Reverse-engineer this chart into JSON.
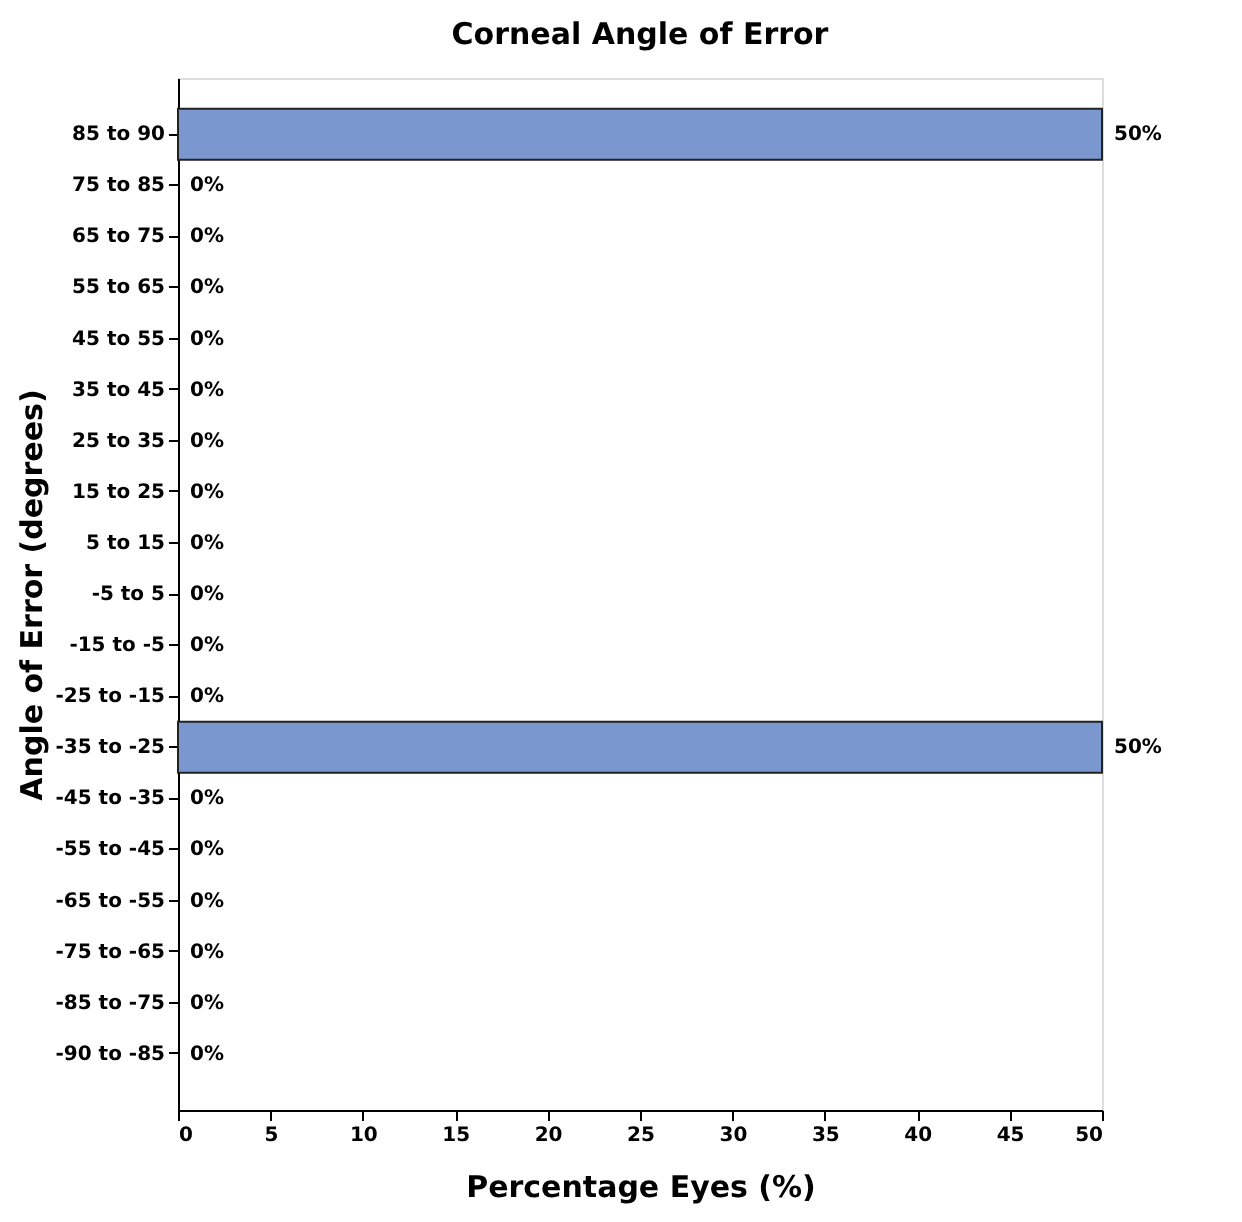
{
  "chart_data": {
    "type": "bar",
    "orientation": "horizontal",
    "title": "Corneal Angle of Error",
    "xlabel": "Percentage Eyes (%)",
    "ylabel": "Angle of Error (degrees)",
    "categories": [
      "85 to 90",
      "75 to 85",
      "65 to 75",
      "55 to 65",
      "45 to 55",
      "35 to 45",
      "25 to 35",
      "15 to 25",
      "5 to 15",
      "-5 to 5",
      "-15 to -5",
      "-25 to -15",
      "-35 to -25",
      "-45 to -35",
      "-55 to -45",
      "-65 to -55",
      "-75 to -65",
      "-85 to -75",
      "-90 to -85"
    ],
    "values": [
      50,
      0,
      0,
      0,
      0,
      0,
      0,
      0,
      0,
      0,
      0,
      0,
      50,
      0,
      0,
      0,
      0,
      0,
      0
    ],
    "value_labels": [
      "50%",
      "0%",
      "0%",
      "0%",
      "0%",
      "0%",
      "0%",
      "0%",
      "0%",
      "0%",
      "0%",
      "0%",
      "50%",
      "0%",
      "0%",
      "0%",
      "0%",
      "0%",
      "0%"
    ],
    "color": "#7b97d0",
    "xlim": [
      0,
      50
    ],
    "xticks": [
      0,
      5,
      10,
      15,
      20,
      25,
      30,
      35,
      40,
      45,
      50
    ],
    "grid": false
  }
}
